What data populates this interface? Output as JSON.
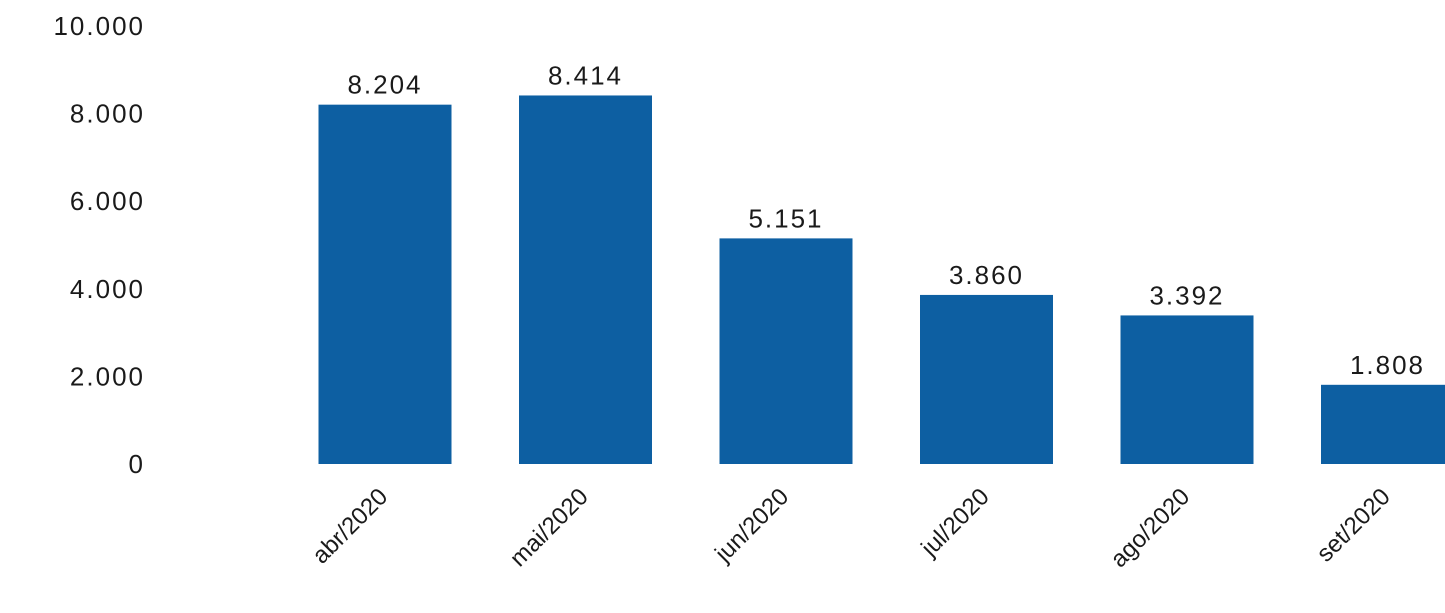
{
  "chart_data": {
    "type": "bar",
    "categories": [
      "abr/2020",
      "mai/2020",
      "jun/2020",
      "jul/2020",
      "ago/2020",
      "set/2020"
    ],
    "values": [
      8204,
      8414,
      5151,
      3860,
      3392,
      1808
    ],
    "value_labels": [
      "8.204",
      "8.414",
      "5.151",
      "3.860",
      "3.392",
      "1.808"
    ],
    "y_ticks": [
      0,
      2000,
      4000,
      6000,
      8000,
      10000
    ],
    "y_tick_labels": [
      "0",
      "2.000",
      "4.000",
      "6.000",
      "8.000",
      "10.000"
    ],
    "ylim": [
      0,
      10000
    ],
    "grid": false,
    "legend": "none",
    "bar_color": "#0d5fa2"
  }
}
